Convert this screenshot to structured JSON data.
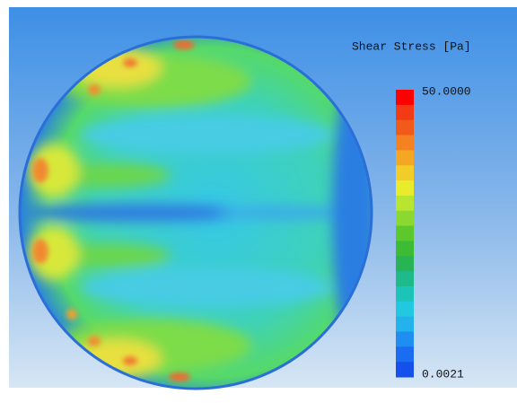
{
  "legend": {
    "title": "Shear Stress [Pa]",
    "max_label": "50.0000",
    "min_label": "0.0021"
  }
}
